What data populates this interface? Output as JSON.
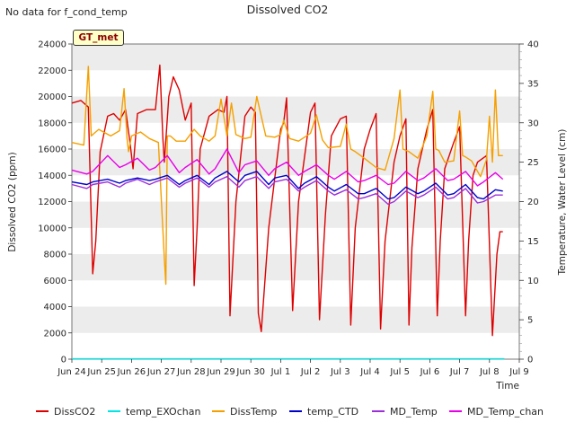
{
  "header": {
    "nodata_text": "No data for f_cond_temp",
    "title": "Dissolved CO2",
    "annotation": "GT_met"
  },
  "chart_data": {
    "type": "line",
    "title": "Dissolved CO2",
    "xlabel": "Time",
    "ylabel_left": "Dissolved CO2 (ppm)",
    "ylabel_right": "Temperature, Water Level (cm)",
    "x_ticks": [
      "Jun 24",
      "Jun 25",
      "Jun 26",
      "Jun 27",
      "Jun 28",
      "Jun 29",
      "Jun 30",
      "Jul 1",
      "Jul 2",
      "Jul 3",
      "Jul 4",
      "Jul 5",
      "Jul 6",
      "Jul 7",
      "Jul 8",
      "Jul 9"
    ],
    "xlim_days": [
      0,
      15
    ],
    "ylim_left": [
      0,
      24000
    ],
    "yticks_left": [
      "0",
      "2000",
      "4000",
      "6000",
      "8000",
      "10000",
      "12000",
      "14000",
      "16000",
      "18000",
      "20000",
      "22000",
      "24000"
    ],
    "ylim_right": [
      0,
      40
    ],
    "yticks_right": [
      "0",
      "5",
      "10",
      "15",
      "20",
      "25",
      "30",
      "35",
      "40"
    ],
    "grid": "horizontal bands",
    "legend_position": "bottom",
    "colors": {
      "DissCO2": "#dd0000",
      "temp_EXOchan": "#00e5e5",
      "DissTemp": "#f5a000",
      "temp_CTD": "#0000cc",
      "MD_Temp": "#9b30d9",
      "MD_Temp_chan": "#e800e8"
    },
    "series": [
      {
        "name": "DissCO2",
        "axis": "left",
        "x": [
          0.0,
          0.3,
          0.55,
          0.7,
          0.8,
          0.95,
          1.2,
          1.4,
          1.6,
          1.8,
          1.95,
          2.05,
          2.2,
          2.5,
          2.8,
          2.95,
          3.05,
          3.1,
          3.25,
          3.4,
          3.6,
          3.8,
          4.0,
          4.1,
          4.2,
          4.3,
          4.6,
          4.9,
          5.1,
          5.2,
          5.3,
          5.5,
          5.8,
          6.0,
          6.15,
          6.25,
          6.35,
          6.6,
          7.0,
          7.1,
          7.2,
          7.4,
          7.6,
          8.0,
          8.15,
          8.3,
          8.5,
          8.7,
          9.0,
          9.2,
          9.35,
          9.5,
          9.8,
          10.0,
          10.2,
          10.35,
          10.5,
          10.8,
          11.0,
          11.2,
          11.3,
          11.4,
          11.6,
          11.9,
          12.1,
          12.25,
          12.35,
          12.5,
          12.8,
          13.0,
          13.2,
          13.3,
          13.45,
          13.6,
          13.9,
          14.1,
          14.25,
          14.35,
          14.45
        ],
        "values": [
          19500,
          19700,
          19200,
          6500,
          9000,
          15800,
          18500,
          18700,
          18200,
          19000,
          16500,
          14500,
          18700,
          19000,
          19000,
          22400,
          16800,
          15000,
          20000,
          21500,
          20500,
          18200,
          19500,
          5600,
          10000,
          16000,
          18500,
          19000,
          18800,
          20000,
          3300,
          12000,
          18500,
          19200,
          18800,
          3500,
          2100,
          10000,
          17500,
          18000,
          19900,
          3700,
          12000,
          18800,
          19500,
          3000,
          11000,
          17000,
          18300,
          18500,
          2600,
          10000,
          16000,
          17500,
          18700,
          2300,
          9000,
          15000,
          17000,
          18300,
          2600,
          8500,
          14500,
          17500,
          19000,
          3300,
          9000,
          14500,
          16500,
          17700,
          3300,
          9000,
          14000,
          15000,
          15500,
          1800,
          8000,
          9700,
          9700
        ]
      },
      {
        "name": "temp_EXOchan",
        "axis": "left",
        "x": [
          0,
          14.5
        ],
        "values": [
          30,
          30
        ]
      },
      {
        "name": "DissTemp",
        "axis": "left",
        "x": [
          0.0,
          0.4,
          0.55,
          0.65,
          0.75,
          0.9,
          1.3,
          1.6,
          1.75,
          1.85,
          1.9,
          2.0,
          2.3,
          2.6,
          2.9,
          3.1,
          3.15,
          3.2,
          3.3,
          3.5,
          3.8,
          4.1,
          4.3,
          4.6,
          4.8,
          5.0,
          5.2,
          5.35,
          5.5,
          5.8,
          6.0,
          6.2,
          6.5,
          6.8,
          7.0,
          7.1,
          7.3,
          7.6,
          8.0,
          8.2,
          8.4,
          8.6,
          9.0,
          9.2,
          9.35,
          9.5,
          9.8,
          10.2,
          10.5,
          10.8,
          11.0,
          11.1,
          11.3,
          11.6,
          11.9,
          12.1,
          12.2,
          12.3,
          12.5,
          12.8,
          13.0,
          13.1,
          13.2,
          13.4,
          13.7,
          13.9,
          14.0,
          14.1,
          14.2,
          14.3,
          14.45
        ],
        "values": [
          16500,
          16300,
          22300,
          17000,
          17200,
          17500,
          17000,
          17400,
          20600,
          16800,
          15800,
          17000,
          17300,
          16800,
          16500,
          7700,
          5700,
          17000,
          17000,
          16600,
          16600,
          17500,
          17000,
          16600,
          17000,
          19800,
          17000,
          19500,
          17100,
          16800,
          16900,
          20000,
          17000,
          16900,
          17100,
          18200,
          16800,
          16600,
          17200,
          18600,
          16700,
          16100,
          16200,
          17900,
          16000,
          15800,
          15300,
          14600,
          14400,
          16800,
          20500,
          16000,
          15800,
          15300,
          17000,
          20400,
          16000,
          15900,
          15000,
          15100,
          18900,
          15500,
          15400,
          15100,
          13900,
          15200,
          18500,
          15000,
          20500,
          15500,
          15500
        ]
      },
      {
        "name": "temp_CTD",
        "axis": "left",
        "x": [
          0.0,
          0.5,
          0.7,
          1.2,
          1.6,
          1.8,
          2.2,
          2.6,
          2.8,
          3.2,
          3.6,
          3.8,
          4.2,
          4.6,
          4.8,
          5.2,
          5.6,
          5.8,
          6.2,
          6.6,
          6.8,
          7.2,
          7.6,
          7.8,
          8.2,
          8.6,
          8.8,
          9.2,
          9.6,
          9.8,
          10.2,
          10.6,
          10.8,
          11.2,
          11.6,
          11.8,
          12.2,
          12.6,
          12.8,
          13.2,
          13.6,
          13.8,
          14.2,
          14.45
        ],
        "values": [
          13500,
          13300,
          13500,
          13700,
          13400,
          13600,
          13800,
          13600,
          13700,
          14000,
          13300,
          13600,
          14000,
          13300,
          13800,
          14300,
          13500,
          14000,
          14300,
          13300,
          13800,
          14000,
          13000,
          13400,
          13900,
          13100,
          12800,
          13300,
          12600,
          12600,
          13000,
          12200,
          12300,
          13100,
          12600,
          12800,
          13400,
          12500,
          12600,
          13300,
          12300,
          12200,
          12900,
          12800
        ]
      },
      {
        "name": "MD_Temp",
        "axis": "left",
        "x": [
          0.0,
          0.5,
          0.7,
          1.2,
          1.6,
          1.8,
          2.2,
          2.6,
          2.8,
          3.2,
          3.6,
          3.8,
          4.2,
          4.6,
          4.8,
          5.2,
          5.6,
          5.8,
          6.2,
          6.6,
          6.8,
          7.2,
          7.6,
          7.8,
          8.2,
          8.6,
          8.8,
          9.2,
          9.6,
          9.8,
          10.2,
          10.6,
          10.8,
          11.2,
          11.6,
          11.8,
          12.2,
          12.6,
          12.8,
          13.2,
          13.6,
          13.8,
          14.2,
          14.45
        ],
        "values": [
          13300,
          13000,
          13300,
          13500,
          13100,
          13400,
          13700,
          13300,
          13500,
          13800,
          13100,
          13400,
          13800,
          13100,
          13500,
          13900,
          13100,
          13600,
          13900,
          13000,
          13500,
          13700,
          12800,
          13100,
          13600,
          12800,
          12500,
          12900,
          12200,
          12300,
          12600,
          11800,
          12000,
          12800,
          12300,
          12500,
          13100,
          12200,
          12300,
          13000,
          11900,
          12000,
          12500,
          12500
        ]
      },
      {
        "name": "MD_Temp_chan",
        "axis": "left",
        "x": [
          0.0,
          0.5,
          0.7,
          1.2,
          1.6,
          1.8,
          2.2,
          2.6,
          2.8,
          3.2,
          3.6,
          3.8,
          4.2,
          4.6,
          4.8,
          5.2,
          5.6,
          5.8,
          6.2,
          6.6,
          6.8,
          7.2,
          7.6,
          7.8,
          8.2,
          8.6,
          8.8,
          9.2,
          9.6,
          9.8,
          10.2,
          10.6,
          10.8,
          11.2,
          11.6,
          11.8,
          12.2,
          12.6,
          12.8,
          13.2,
          13.6,
          13.8,
          14.2,
          14.45
        ],
        "values": [
          14400,
          14100,
          14300,
          15500,
          14600,
          14800,
          15300,
          14400,
          14600,
          15500,
          14200,
          14600,
          15200,
          14100,
          14500,
          16000,
          14200,
          14800,
          15100,
          14000,
          14500,
          15000,
          14000,
          14300,
          14800,
          14000,
          13700,
          14300,
          13500,
          13600,
          14000,
          13300,
          13400,
          14300,
          13600,
          13800,
          14500,
          13600,
          13700,
          14300,
          13200,
          13500,
          14200,
          13700
        ]
      }
    ]
  }
}
